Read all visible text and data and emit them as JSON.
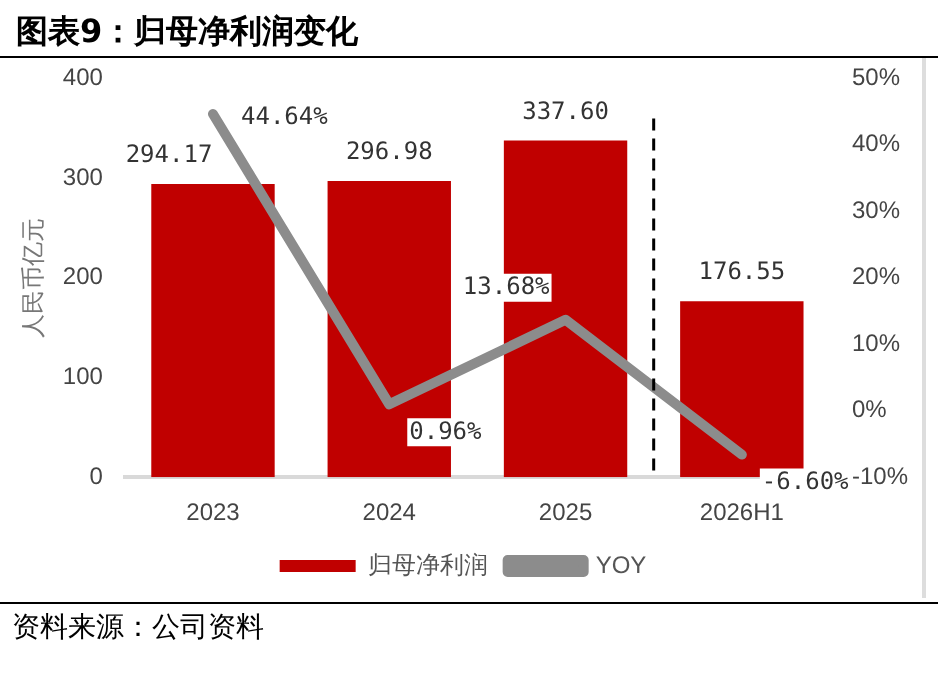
{
  "chart_data": {
    "type": "bar",
    "title": "图表9：归母净利润变化",
    "ylabel": "人民币亿元",
    "categories": [
      "2023",
      "2024",
      "2025",
      "2026H1"
    ],
    "series": [
      {
        "name": "归母净利润",
        "color": "#c00000",
        "values": [
          294.17,
          296.98,
          337.6,
          176.55
        ],
        "value_labels": [
          "294.17",
          "296.98",
          "337.60",
          "176.55"
        ]
      },
      {
        "name": "YOY",
        "type": "line",
        "axis": "y2",
        "color": "#8c8c8c",
        "values": [
          44.64,
          0.96,
          13.68,
          -6.6
        ],
        "value_labels": [
          "44.64%",
          "0.96%",
          "13.68%",
          "-6.60%"
        ]
      }
    ],
    "ylim": [
      0,
      400
    ],
    "yticks": [
      0,
      100,
      200,
      300,
      400
    ],
    "y2lim": [
      -10,
      50
    ],
    "y2ticks": [
      {
        "value": -10,
        "label": "-10%"
      },
      {
        "value": 0,
        "label": "0%"
      },
      {
        "value": 10,
        "label": "10%"
      },
      {
        "value": 20,
        "label": "20%"
      },
      {
        "value": 30,
        "label": "30%"
      },
      {
        "value": 40,
        "label": "40%"
      },
      {
        "value": 50,
        "label": "50%"
      }
    ],
    "grid": false,
    "legend": "bottom",
    "marker": "none",
    "annotations": [
      "资料来源：公司资料"
    ]
  }
}
